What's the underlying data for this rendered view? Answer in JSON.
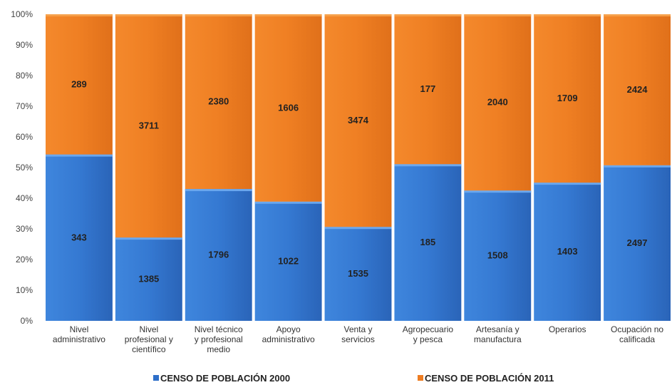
{
  "chart_data": {
    "type": "bar",
    "stacked": true,
    "normalized": true,
    "categories": [
      [
        "Nivel",
        "administrativo"
      ],
      [
        "Nivel",
        "profesional y",
        "científico"
      ],
      [
        "Nivel técnico",
        "y profesional",
        "medio"
      ],
      [
        "Apoyo",
        "administrativo"
      ],
      [
        "Venta y",
        "servicios"
      ],
      [
        "Agropecuario",
        "y pesca"
      ],
      [
        "Artesanía y",
        "manufactura"
      ],
      [
        "Operarios"
      ],
      [
        "Ocupación no",
        "calificada"
      ]
    ],
    "series": [
      {
        "name": "CENSO DE POBLACIÓN 2000",
        "color": "#2e6fc9",
        "values": [
          343,
          1385,
          1796,
          1022,
          1535,
          185,
          1508,
          1403,
          2497
        ]
      },
      {
        "name": "CENSO DE POBLACIÓN 2011",
        "color": "#ee7d22",
        "values": [
          289,
          3711,
          2380,
          1606,
          3474,
          177,
          2040,
          1709,
          2424
        ]
      }
    ],
    "y_ticks": [
      "0%",
      "10%",
      "20%",
      "30%",
      "40%",
      "50%",
      "60%",
      "70%",
      "80%",
      "90%",
      "100%"
    ],
    "ylim": [
      0,
      100
    ],
    "grid": false,
    "legend_position": "bottom"
  }
}
